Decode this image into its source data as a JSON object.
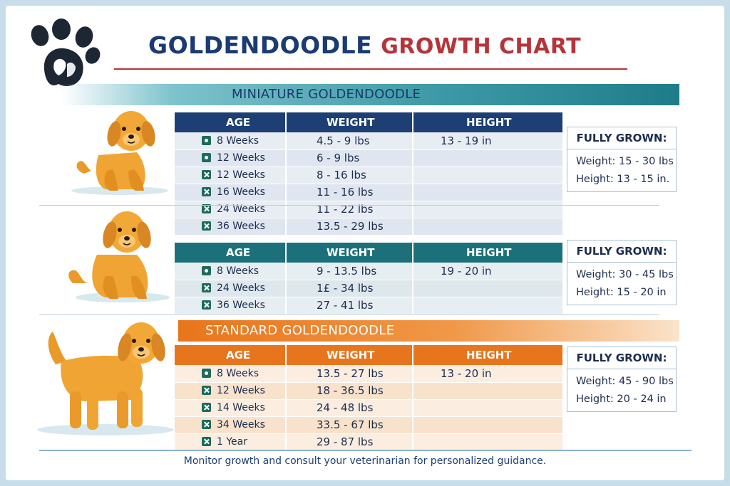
{
  "title": {
    "part1": "GOLDENDOODLE",
    "part2": "GROWTH CHART"
  },
  "colors": {
    "navy": "#1d3f73",
    "red": "#b5343a",
    "teal": "#1c7079",
    "orange": "#e7751d"
  },
  "icons": {
    "logo": "paw-print-icon",
    "dog": "golden-puppy-illustration",
    "row_marker_filled": "dot-checkbox-icon",
    "row_marker_x": "x-checkbox-icon"
  },
  "miniature": {
    "band_label": "MINIATURE GOLDENDOODLE",
    "headers": [
      "AGE",
      "WEIGHT",
      "HEIGHT"
    ],
    "rows": [
      {
        "marker": "dot",
        "age": "8 Weeks",
        "weight": "4.5 - 9 lbs",
        "height": "13 - 19 in"
      },
      {
        "marker": "dot",
        "age": "12 Weeks",
        "weight": "6 - 9 lbs",
        "height": ""
      },
      {
        "marker": "x",
        "age": "12 Weeks",
        "weight": "8 - 16 lbs",
        "height": ""
      },
      {
        "marker": "x",
        "age": "16 Weeks",
        "weight": "11 - 16 lbs",
        "height": ""
      },
      {
        "marker": "x",
        "age": "24 Weeks",
        "weight": "11 - 22 lbs",
        "height": ""
      },
      {
        "marker": "x",
        "age": "36 Weeks",
        "weight": "13.5 - 29 lbs",
        "height": ""
      }
    ],
    "fully_grown": {
      "heading": "FULLY GROWN:",
      "weight": "Weight:  15 - 30 lbs",
      "height": "Height:  13 - 15 in."
    }
  },
  "medium": {
    "headers": [
      "AGE",
      "WEIGHT",
      "HEIGHT"
    ],
    "rows": [
      {
        "marker": "dot",
        "age": "8 Weeks",
        "weight": "9 - 13.5 lbs",
        "height": "19 - 20 in"
      },
      {
        "marker": "x",
        "age": "24 Weeks",
        "weight": "1£ - 34 lbs",
        "height": ""
      },
      {
        "marker": "x",
        "age": "36 Weeks",
        "weight": "27 - 41 lbs",
        "height": ""
      }
    ],
    "fully_grown": {
      "heading": "FULLY GROWN:",
      "weight": "Weight:  30 - 45 lbs",
      "height": "Height:  15 - 20 in"
    }
  },
  "standard": {
    "band_label": "STANDARD GOLDENDOODLE",
    "headers": [
      "AGE",
      "WEIGHT",
      "HEIGHT"
    ],
    "rows": [
      {
        "marker": "dot",
        "age": "8 Weeks",
        "weight": "13.5 - 27 lbs",
        "height": "13 - 20 in"
      },
      {
        "marker": "x",
        "age": "12 Weeks",
        "weight": "18 - 36.5 lbs",
        "height": ""
      },
      {
        "marker": "x",
        "age": "14 Weeks",
        "weight": "24 - 48 lbs",
        "height": ""
      },
      {
        "marker": "x",
        "age": "34 Weeks",
        "weight": "33.5 - 67 lbs",
        "height": ""
      },
      {
        "marker": "x",
        "age": "1 Year",
        "weight": "29 - 87 lbs",
        "height": ""
      }
    ],
    "fully_grown": {
      "heading": "FULLY GROWN:",
      "weight": "Weight:  45 - 90 lbs",
      "height": "Height:  20 - 24 in"
    }
  },
  "footer": "Monitor growth and consult your veterinarian for personalized guidance."
}
